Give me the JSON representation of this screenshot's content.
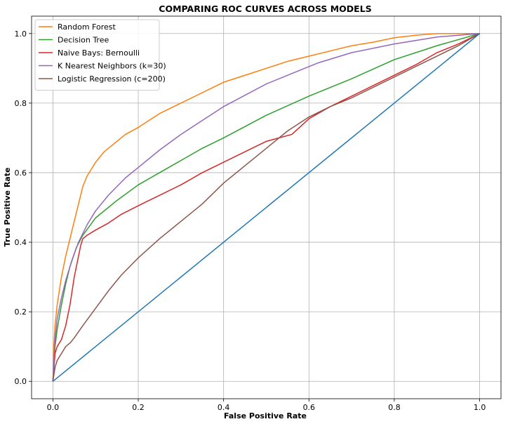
{
  "chart_data": {
    "type": "line",
    "title": "COMPARING ROC CURVES ACROSS MODELS",
    "xlabel": "False Positive Rate",
    "ylabel": "True Positive Rate",
    "xlim": [
      -0.05,
      1.05
    ],
    "ylim": [
      -0.05,
      1.05
    ],
    "xticks": [
      0.0,
      0.2,
      0.4,
      0.6,
      0.8,
      1.0
    ],
    "yticks": [
      0.0,
      0.2,
      0.4,
      0.6,
      0.8,
      1.0
    ],
    "xtick_labels": [
      "0.0",
      "0.2",
      "0.4",
      "0.6",
      "0.8",
      "1.0"
    ],
    "ytick_labels": [
      "0.0",
      "0.2",
      "0.4",
      "0.6",
      "0.8",
      "1.0"
    ],
    "grid": true,
    "legend_position": "top-left",
    "series": [
      {
        "name": "Random Forest",
        "color": "#ff7f0e",
        "x": [
          0,
          0.002,
          0.005,
          0.01,
          0.02,
          0.03,
          0.04,
          0.05,
          0.06,
          0.07,
          0.08,
          0.1,
          0.12,
          0.14,
          0.17,
          0.2,
          0.25,
          0.3,
          0.35,
          0.4,
          0.45,
          0.5,
          0.55,
          0.6,
          0.65,
          0.7,
          0.75,
          0.8,
          0.85,
          0.9,
          0.95,
          1.0
        ],
        "y": [
          0,
          0.1,
          0.16,
          0.22,
          0.3,
          0.36,
          0.41,
          0.46,
          0.51,
          0.56,
          0.59,
          0.63,
          0.66,
          0.68,
          0.71,
          0.73,
          0.77,
          0.8,
          0.83,
          0.86,
          0.88,
          0.9,
          0.92,
          0.935,
          0.95,
          0.965,
          0.975,
          0.988,
          0.995,
          1.0,
          1.0,
          1.0
        ]
      },
      {
        "name": "Decision Tree",
        "color": "#2ca02c",
        "x": [
          0,
          0.005,
          0.01,
          0.02,
          0.03,
          0.04,
          0.055,
          0.07,
          0.1,
          0.15,
          0.2,
          0.25,
          0.3,
          0.35,
          0.4,
          0.5,
          0.6,
          0.7,
          0.8,
          0.9,
          1.0
        ],
        "y": [
          0,
          0.1,
          0.15,
          0.22,
          0.28,
          0.33,
          0.385,
          0.42,
          0.47,
          0.52,
          0.565,
          0.6,
          0.635,
          0.67,
          0.7,
          0.765,
          0.82,
          0.87,
          0.925,
          0.965,
          1.0
        ]
      },
      {
        "name": "Naive Bays: Bernoulli",
        "color": "#d62728",
        "x": [
          0,
          0.005,
          0.01,
          0.02,
          0.03,
          0.04,
          0.05,
          0.06,
          0.065,
          0.07,
          0.08,
          0.1,
          0.13,
          0.16,
          0.2,
          0.25,
          0.3,
          0.35,
          0.4,
          0.45,
          0.5,
          0.56,
          0.6,
          0.65,
          0.7,
          0.75,
          0.8,
          0.85,
          0.9,
          0.95,
          1.0
        ],
        "y": [
          0,
          0.08,
          0.1,
          0.12,
          0.16,
          0.22,
          0.3,
          0.36,
          0.39,
          0.41,
          0.42,
          0.435,
          0.455,
          0.48,
          0.505,
          0.535,
          0.565,
          0.6,
          0.63,
          0.66,
          0.69,
          0.71,
          0.755,
          0.79,
          0.82,
          0.85,
          0.88,
          0.91,
          0.945,
          0.97,
          1.0
        ]
      },
      {
        "name": "K Nearest Neighbors (k=30)",
        "color": "#9467bd",
        "x": [
          0,
          0.005,
          0.01,
          0.02,
          0.03,
          0.045,
          0.06,
          0.08,
          0.1,
          0.13,
          0.17,
          0.2,
          0.25,
          0.3,
          0.35,
          0.4,
          0.5,
          0.55,
          0.62,
          0.7,
          0.8,
          0.9,
          1.0
        ],
        "y": [
          0,
          0.12,
          0.18,
          0.24,
          0.29,
          0.35,
          0.4,
          0.45,
          0.49,
          0.535,
          0.585,
          0.615,
          0.665,
          0.71,
          0.75,
          0.79,
          0.855,
          0.88,
          0.915,
          0.945,
          0.97,
          0.99,
          1.0
        ]
      },
      {
        "name": "Logistic Regression (c=200)",
        "color": "#8c564b",
        "x": [
          0,
          0.005,
          0.01,
          0.02,
          0.03,
          0.04,
          0.05,
          0.07,
          0.1,
          0.13,
          0.16,
          0.2,
          0.25,
          0.3,
          0.35,
          0.4,
          0.45,
          0.5,
          0.55,
          0.6,
          0.65,
          0.7,
          0.75,
          0.8,
          0.85,
          0.9,
          0.95,
          1.0
        ],
        "y": [
          0,
          0.04,
          0.06,
          0.08,
          0.1,
          0.11,
          0.125,
          0.16,
          0.21,
          0.26,
          0.305,
          0.355,
          0.41,
          0.46,
          0.51,
          0.57,
          0.62,
          0.67,
          0.72,
          0.76,
          0.79,
          0.815,
          0.845,
          0.875,
          0.905,
          0.935,
          0.965,
          1.0
        ]
      },
      {
        "name": "",
        "color": "#1f77b4",
        "x": [
          0,
          1
        ],
        "y": [
          0,
          1
        ]
      }
    ]
  }
}
